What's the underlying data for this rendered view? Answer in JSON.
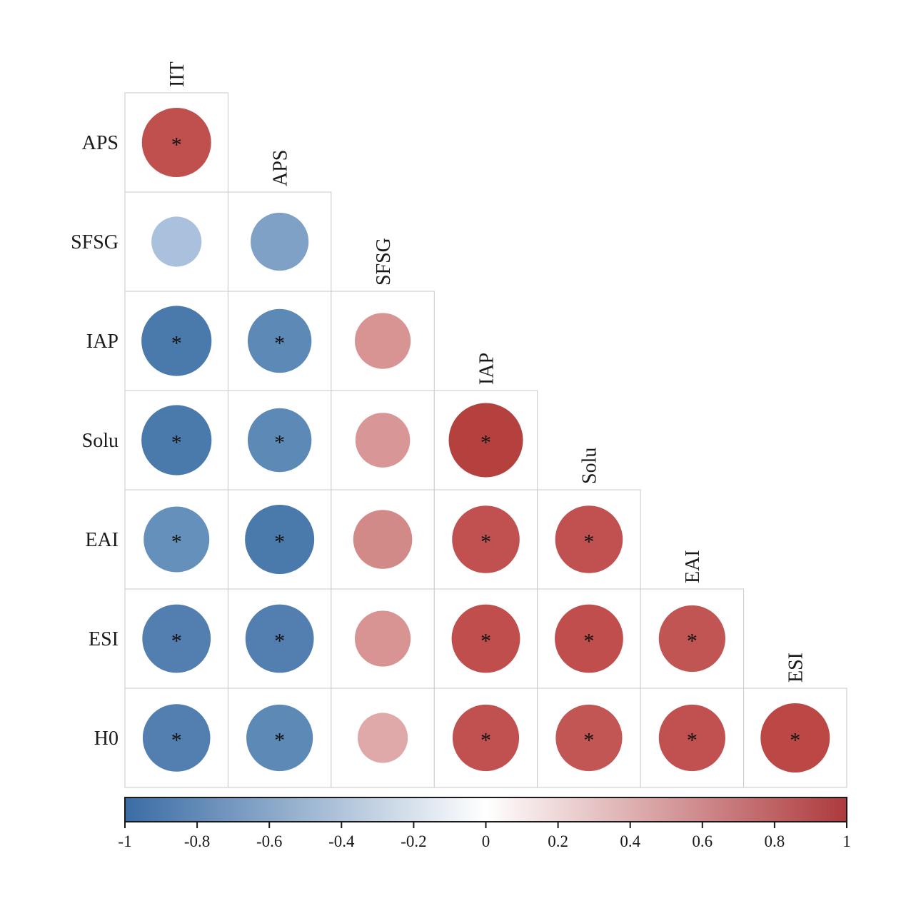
{
  "figure": {
    "background": "#ffffff",
    "grid_line_color": "#c9c9c9",
    "text_color": "#1a1a1a"
  },
  "chart_data": {
    "type": "heatmap",
    "subtype": "correlation-matrix-lower-triangle-circles",
    "title": "",
    "significance_marker": "*",
    "size_encoding": "circle diameter proportional to sqrt(|r|)",
    "row_labels": [
      "APS",
      "SFSG",
      "IAP",
      "Solu",
      "EAI",
      "ESI",
      "H0"
    ],
    "col_labels": [
      "IIT",
      "APS",
      "SFSG",
      "IAP",
      "Solu",
      "EAI",
      "ESI"
    ],
    "cells": [
      {
        "row": "APS",
        "col": "IIT",
        "value": 0.8,
        "significant": true,
        "color": "#c0504e"
      },
      {
        "row": "SFSG",
        "col": "IIT",
        "value": -0.42,
        "significant": false,
        "color": "#a9c1dc"
      },
      {
        "row": "SFSG",
        "col": "APS",
        "value": -0.56,
        "significant": false,
        "color": "#7fa1c6"
      },
      {
        "row": "IAP",
        "col": "IIT",
        "value": -0.82,
        "significant": true,
        "color": "#4a79ab"
      },
      {
        "row": "IAP",
        "col": "APS",
        "value": -0.68,
        "significant": true,
        "color": "#5d89b6"
      },
      {
        "row": "IAP",
        "col": "SFSG",
        "value": 0.52,
        "significant": false,
        "color": "#d79493"
      },
      {
        "row": "Solu",
        "col": "IIT",
        "value": -0.82,
        "significant": true,
        "color": "#4a79ab"
      },
      {
        "row": "Solu",
        "col": "APS",
        "value": -0.68,
        "significant": true,
        "color": "#5d89b6"
      },
      {
        "row": "Solu",
        "col": "SFSG",
        "value": 0.5,
        "significant": false,
        "color": "#d89796"
      },
      {
        "row": "Solu",
        "col": "IAP",
        "value": 0.92,
        "significant": true,
        "color": "#b5413f"
      },
      {
        "row": "EAI",
        "col": "IIT",
        "value": -0.72,
        "significant": true,
        "color": "#6590bb"
      },
      {
        "row": "EAI",
        "col": "APS",
        "value": -0.8,
        "significant": true,
        "color": "#4a79ab"
      },
      {
        "row": "EAI",
        "col": "SFSG",
        "value": 0.58,
        "significant": false,
        "color": "#d28a89"
      },
      {
        "row": "EAI",
        "col": "IAP",
        "value": 0.76,
        "significant": true,
        "color": "#c05150"
      },
      {
        "row": "EAI",
        "col": "Solu",
        "value": 0.76,
        "significant": true,
        "color": "#c05150"
      },
      {
        "row": "ESI",
        "col": "IIT",
        "value": -0.78,
        "significant": true,
        "color": "#527fb0"
      },
      {
        "row": "ESI",
        "col": "APS",
        "value": -0.78,
        "significant": true,
        "color": "#527fb0"
      },
      {
        "row": "ESI",
        "col": "SFSG",
        "value": 0.52,
        "significant": false,
        "color": "#d79493"
      },
      {
        "row": "ESI",
        "col": "IAP",
        "value": 0.78,
        "significant": true,
        "color": "#bf4e4c"
      },
      {
        "row": "ESI",
        "col": "Solu",
        "value": 0.78,
        "significant": true,
        "color": "#bf4e4c"
      },
      {
        "row": "ESI",
        "col": "EAI",
        "value": 0.74,
        "significant": true,
        "color": "#c05553"
      },
      {
        "row": "H0",
        "col": "IIT",
        "value": -0.76,
        "significant": true,
        "color": "#527fb0"
      },
      {
        "row": "H0",
        "col": "APS",
        "value": -0.74,
        "significant": true,
        "color": "#5d89b6"
      },
      {
        "row": "H0",
        "col": "SFSG",
        "value": 0.42,
        "significant": false,
        "color": "#e0a9a9"
      },
      {
        "row": "H0",
        "col": "IAP",
        "value": 0.74,
        "significant": true,
        "color": "#c05150"
      },
      {
        "row": "H0",
        "col": "Solu",
        "value": 0.74,
        "significant": true,
        "color": "#c25654"
      },
      {
        "row": "H0",
        "col": "EAI",
        "value": 0.74,
        "significant": true,
        "color": "#c05150"
      },
      {
        "row": "H0",
        "col": "ESI",
        "value": 0.8,
        "significant": true,
        "color": "#bc4846"
      }
    ],
    "colorbar": {
      "min": -1,
      "max": 1,
      "ticks": [
        "-1",
        "-0.8",
        "-0.6",
        "-0.4",
        "-0.2",
        "0",
        "0.2",
        "0.4",
        "0.6",
        "0.8",
        "1"
      ],
      "color_negative": "#3a6ca4",
      "color_zero": "#ffffff",
      "color_positive": "#ad3a3d",
      "border_color": "#1a1a1a"
    },
    "legend_position": "bottom",
    "grid": true
  }
}
